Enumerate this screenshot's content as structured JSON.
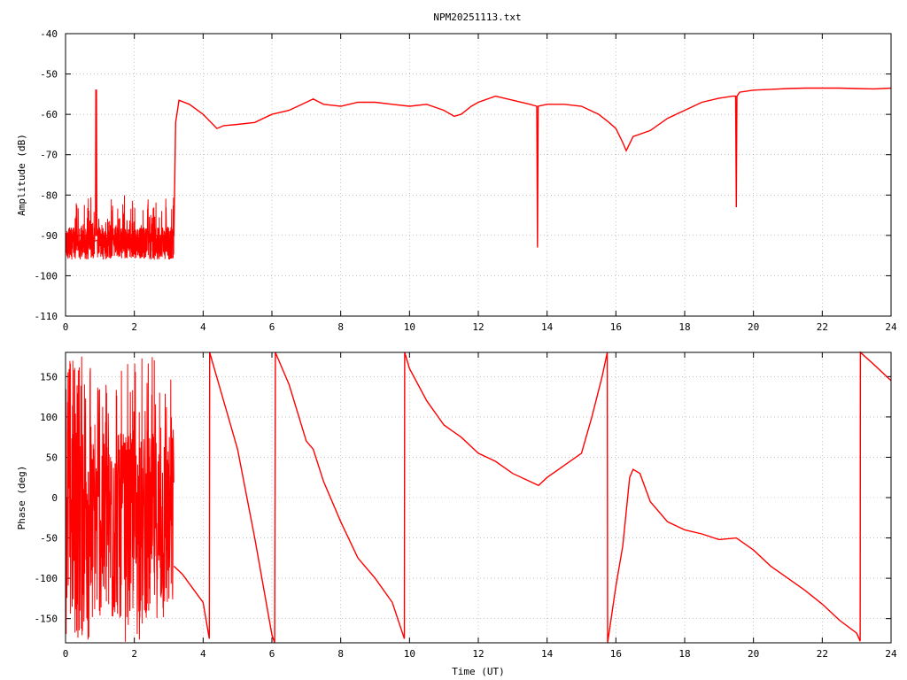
{
  "title": "NPM20251113.txt",
  "line_color": "#ff0000",
  "grid": "dotted",
  "chart_data": [
    {
      "type": "line",
      "panel": "amplitude",
      "title": "NPM20251113.txt",
      "xlabel": "",
      "ylabel": "Amplitude (dB)",
      "xlim": [
        0,
        24
      ],
      "ylim": [
        -110,
        -40
      ],
      "xticks": [
        "0",
        "2",
        "4",
        "6",
        "8",
        "10",
        "12",
        "14",
        "16",
        "18",
        "20",
        "22",
        "24"
      ],
      "yticks": [
        "-40",
        "-50",
        "-60",
        "-70",
        "-80",
        "-90",
        "-100",
        "-110"
      ],
      "series": [
        {
          "x": [
            0.0,
            0.87,
            0.88,
            0.9,
            0.91,
            3.15,
            3.2,
            3.3,
            3.6,
            4.0,
            4.4,
            4.6,
            5.0,
            5.5,
            6.0,
            6.5,
            7.0,
            7.2,
            7.5,
            8.0,
            8.5,
            9.0,
            9.5,
            10.0,
            10.5,
            11.0,
            11.3,
            11.5,
            11.8,
            12.0,
            12.5,
            13.0,
            13.5,
            13.7,
            13.72,
            13.74,
            14.0,
            14.5,
            15.0,
            15.5,
            15.8,
            16.0,
            16.2,
            16.3,
            16.5,
            17.0,
            17.5,
            18.0,
            18.5,
            19.0,
            19.4,
            19.48,
            19.5,
            19.52,
            19.6,
            20.0,
            20.5,
            21.0,
            21.5,
            22.0,
            22.5,
            23.0,
            23.5,
            24.0
          ],
          "y": [
            -90,
            -90,
            -54,
            -54,
            -90,
            -90,
            -62,
            -56.5,
            -57.5,
            -60,
            -63.5,
            -62.8,
            -62.5,
            -62,
            -60,
            -59,
            -57,
            -56.2,
            -57.5,
            -58,
            -57,
            -57,
            -57.5,
            -58,
            -57.5,
            -59,
            -60.5,
            -60,
            -58,
            -57,
            -55.5,
            -56.5,
            -57.5,
            -58,
            -93,
            -58,
            -57.5,
            -57.5,
            -58,
            -60,
            -62,
            -63.5,
            -67,
            -69,
            -65.5,
            -64,
            -61,
            -59,
            -57,
            -56,
            -55.5,
            -55.5,
            -83,
            -55.5,
            -54.5,
            -54,
            -53.8,
            -53.6,
            -53.5,
            -53.5,
            -53.5,
            -53.6,
            -53.7,
            -53.5
          ]
        }
      ]
    },
    {
      "type": "line",
      "panel": "phase",
      "xlabel": "Time (UT)",
      "ylabel": "Phase (deg)",
      "xlim": [
        0,
        24
      ],
      "ylim": [
        -180,
        180
      ],
      "xticks": [
        "0",
        "2",
        "4",
        "6",
        "8",
        "10",
        "12",
        "14",
        "16",
        "18",
        "20",
        "22",
        "24"
      ],
      "yticks": [
        "150",
        "100",
        "50",
        "0",
        "-50",
        "-100",
        "-150"
      ],
      "series": [
        {
          "x": [
            3.15,
            3.4,
            4.0,
            4.18,
            4.19,
            5.0,
            5.5,
            6.0,
            6.08,
            6.1,
            6.5,
            7.0,
            7.2,
            7.5,
            8.0,
            8.5,
            9.0,
            9.5,
            9.85,
            9.86,
            10.0,
            10.5,
            11.0,
            11.5,
            12.0,
            12.5,
            13.0,
            13.5,
            13.75,
            14.0,
            14.5,
            15.0,
            15.3,
            15.6,
            15.75,
            15.76,
            16.0,
            16.2,
            16.4,
            16.5,
            16.7,
            17.0,
            17.5,
            18.0,
            18.5,
            19.0,
            19.5,
            20.0,
            20.5,
            21.0,
            21.5,
            22.0,
            22.5,
            23.0,
            23.1,
            23.11,
            23.5,
            24.0
          ],
          "y": [
            -85,
            -95,
            -130,
            -175,
            180,
            60,
            -50,
            -170,
            -180,
            180,
            140,
            70,
            60,
            20,
            -30,
            -75,
            -100,
            -130,
            -175,
            180,
            160,
            120,
            90,
            75,
            55,
            45,
            30,
            20,
            15,
            25,
            40,
            55,
            100,
            150,
            180,
            -180,
            -110,
            -60,
            25,
            35,
            30,
            -5,
            -30,
            -40,
            -45,
            -52,
            -50,
            -65,
            -85,
            -100,
            -115,
            -132,
            -152,
            -168,
            -178,
            180,
            165,
            145
          ]
        }
      ]
    }
  ]
}
